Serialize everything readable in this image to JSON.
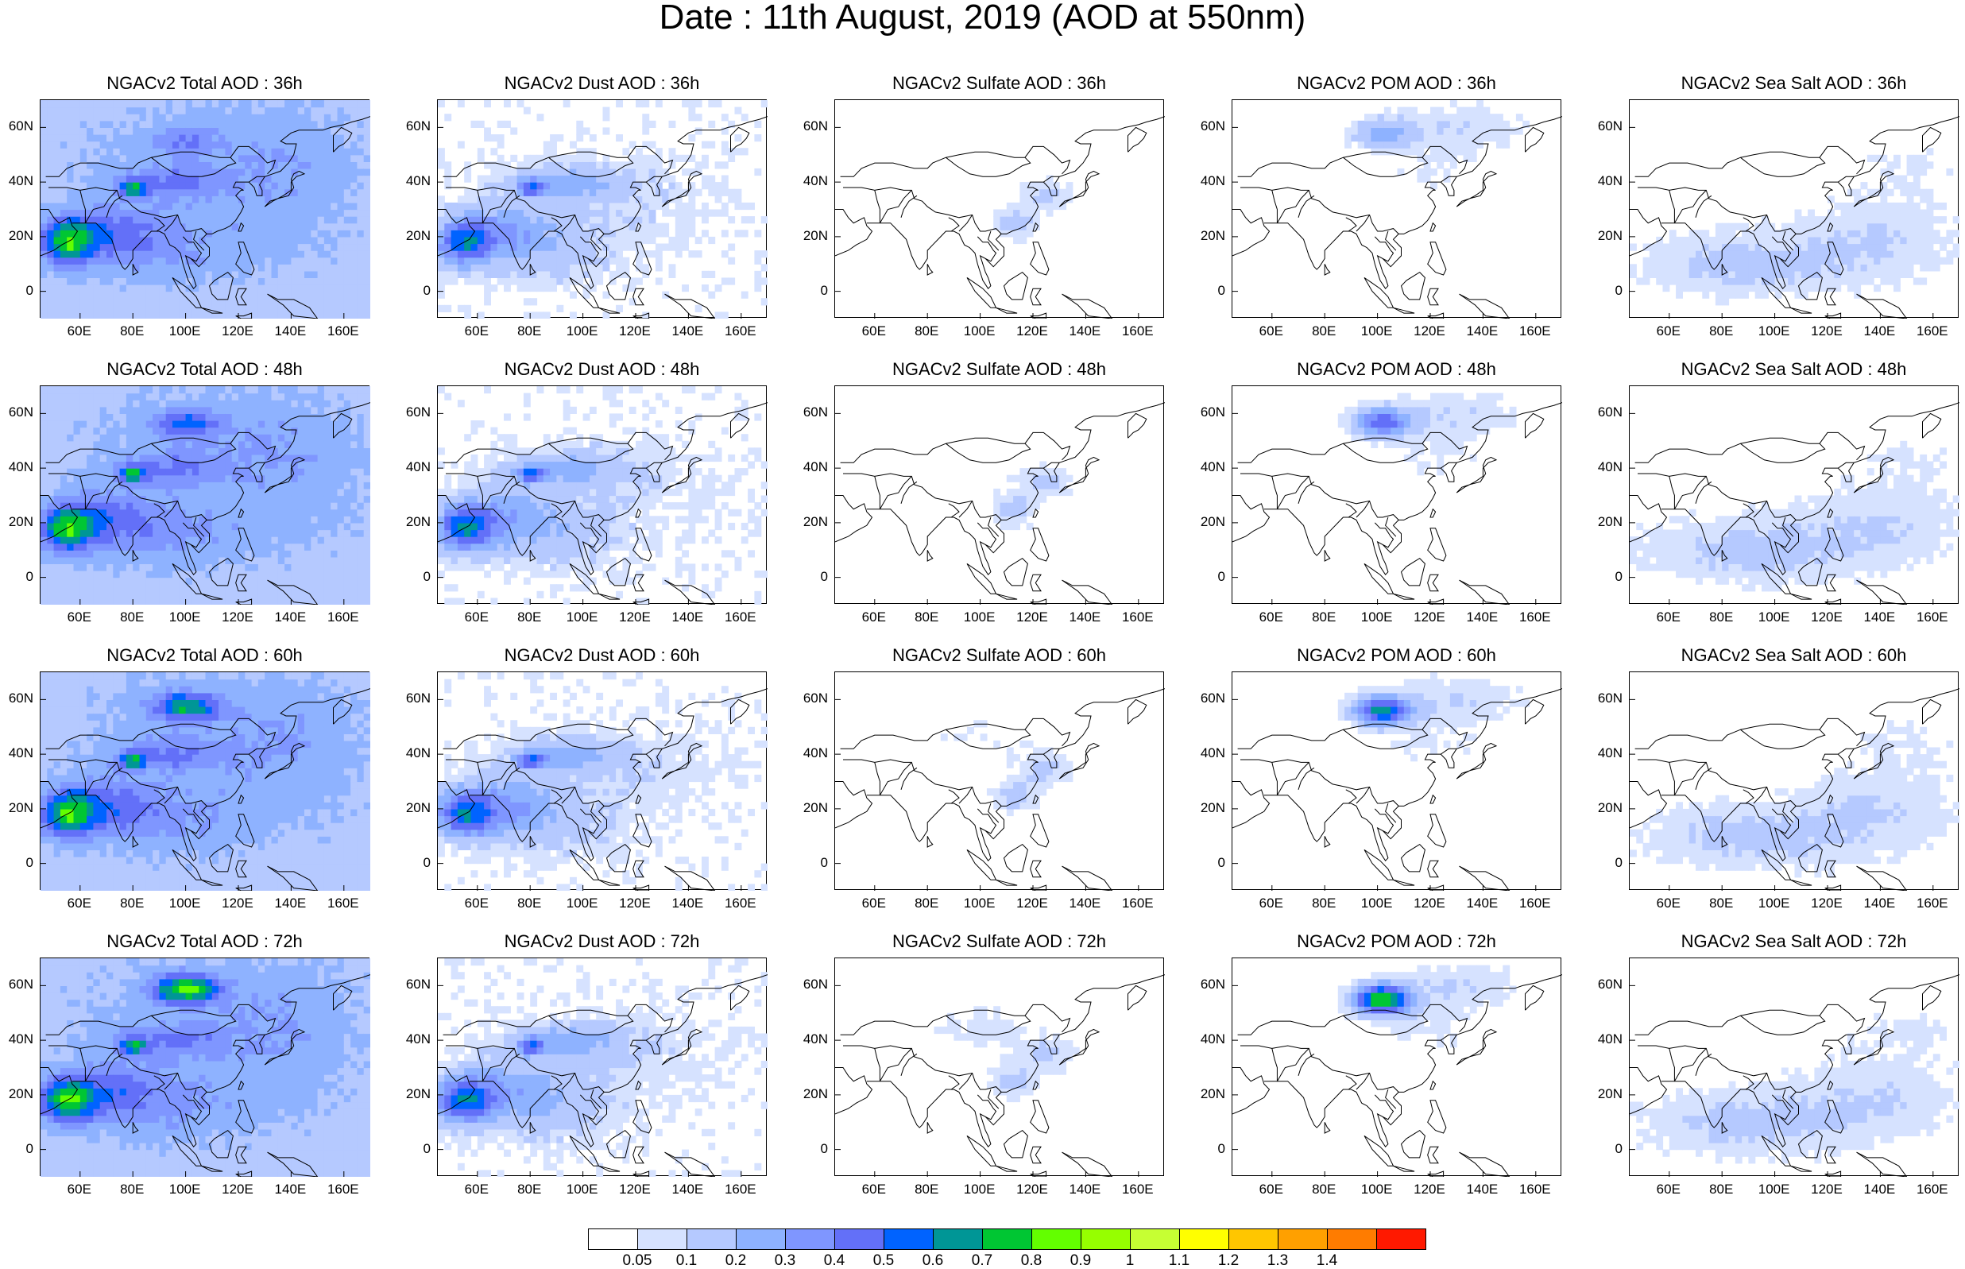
{
  "figure": {
    "title": "Date : 11th August, 2019 (AOD at 550nm)"
  },
  "axes": {
    "lat_ticks": [
      "60N",
      "40N",
      "20N",
      "0"
    ],
    "lon_ticks": [
      "60E",
      "80E",
      "100E",
      "120E",
      "140E",
      "160E"
    ],
    "lat_range": [
      -10,
      70
    ],
    "lon_range": [
      45,
      170
    ]
  },
  "panels": [
    [
      {
        "title": "NGACv2 Total AOD : 36h",
        "variable": "total",
        "hour": 36
      },
      {
        "title": "NGACv2 Dust AOD : 36h",
        "variable": "dust",
        "hour": 36
      },
      {
        "title": "NGACv2 Sulfate AOD : 36h",
        "variable": "sulfate",
        "hour": 36
      },
      {
        "title": "NGACv2 POM AOD : 36h",
        "variable": "pom",
        "hour": 36
      },
      {
        "title": "NGACv2 Sea Salt AOD : 36h",
        "variable": "seasalt",
        "hour": 36
      }
    ],
    [
      {
        "title": "NGACv2 Total AOD : 48h",
        "variable": "total",
        "hour": 48
      },
      {
        "title": "NGACv2 Dust AOD : 48h",
        "variable": "dust",
        "hour": 48
      },
      {
        "title": "NGACv2 Sulfate AOD : 48h",
        "variable": "sulfate",
        "hour": 48
      },
      {
        "title": "NGACv2 POM AOD : 48h",
        "variable": "pom",
        "hour": 48
      },
      {
        "title": "NGACv2 Sea Salt AOD : 48h",
        "variable": "seasalt",
        "hour": 48
      }
    ],
    [
      {
        "title": "NGACv2 Total AOD : 60h",
        "variable": "total",
        "hour": 60
      },
      {
        "title": "NGACv2 Dust AOD : 60h",
        "variable": "dust",
        "hour": 60
      },
      {
        "title": "NGACv2 Sulfate AOD : 60h",
        "variable": "sulfate",
        "hour": 60
      },
      {
        "title": "NGACv2 POM AOD : 60h",
        "variable": "pom",
        "hour": 60
      },
      {
        "title": "NGACv2 Sea Salt AOD : 60h",
        "variable": "seasalt",
        "hour": 60
      }
    ],
    [
      {
        "title": "NGACv2 Total AOD : 72h",
        "variable": "total",
        "hour": 72
      },
      {
        "title": "NGACv2 Dust AOD : 72h",
        "variable": "dust",
        "hour": 72
      },
      {
        "title": "NGACv2 Sulfate AOD : 72h",
        "variable": "sulfate",
        "hour": 72
      },
      {
        "title": "NGACv2 POM AOD : 72h",
        "variable": "pom",
        "hour": 72
      },
      {
        "title": "NGACv2 Sea Salt  AOD : 72h",
        "variable": "seasalt",
        "hour": 72
      }
    ]
  ],
  "colorbar": {
    "labels": [
      "0.05",
      "0.1",
      "0.2",
      "0.3",
      "0.4",
      "0.5",
      "0.6",
      "0.7",
      "0.8",
      "0.9",
      "1",
      "1.1",
      "1.2",
      "1.3",
      "1.4"
    ],
    "colors": [
      "#ffffff",
      "#d6e2ff",
      "#b5c9ff",
      "#8eb2ff",
      "#7f96ff",
      "#6370f8",
      "#0063ff",
      "#009696",
      "#00c633",
      "#63ff00",
      "#96ff00",
      "#c6ff33",
      "#ffff00",
      "#ffc600",
      "#ffa000",
      "#ff7c00",
      "#ff1900"
    ]
  }
}
